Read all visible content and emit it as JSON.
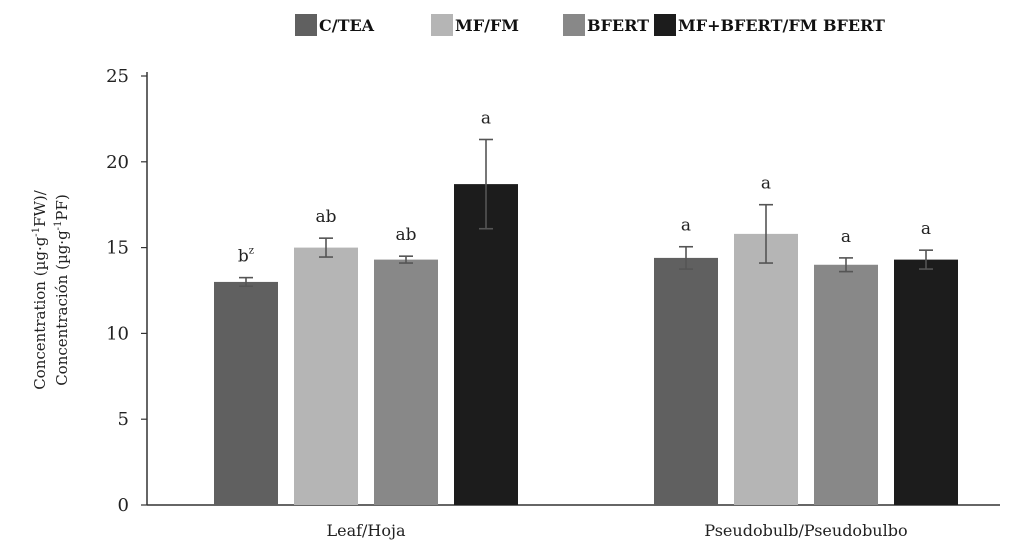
{
  "chart_data": {
    "type": "bar",
    "categories": [
      "Leaf/Hoja",
      "Pseudobulb/Pseudobulbo"
    ],
    "series": [
      {
        "name": "C/TEA",
        "color": "#606060",
        "values": [
          13.0,
          14.4
        ],
        "errors": [
          0.25,
          0.65
        ],
        "letters": [
          "b",
          "a"
        ]
      },
      {
        "name": "MF/FM",
        "color": "#b5b5b5",
        "values": [
          15.0,
          15.8
        ],
        "errors": [
          0.55,
          1.7
        ],
        "letters": [
          "ab",
          "a"
        ]
      },
      {
        "name": "BFERT",
        "color": "#888888",
        "values": [
          14.3,
          14.0
        ],
        "errors": [
          0.2,
          0.4
        ],
        "letters": [
          "ab",
          "a"
        ]
      },
      {
        "name": "MF+BFERT/FM BFERT",
        "color": "#1c1c1c",
        "values": [
          18.7,
          14.3
        ],
        "errors": [
          2.6,
          0.55
        ],
        "letters": [
          "a",
          "a"
        ]
      }
    ],
    "footnote_mark": "z",
    "ylabel_line1": "Concentration (µg·g",
    "ylabel_line1_sup": "-1",
    "ylabel_line1_end": "FW)/",
    "ylabel_line2": "Concentración (µg·g",
    "ylabel_line2_sup": "-1",
    "ylabel_line2_end": "PF)",
    "ylim": [
      0,
      25
    ],
    "yticks": [
      0,
      5,
      10,
      15,
      20,
      25
    ],
    "grid": false,
    "legend_position": "top-center"
  }
}
